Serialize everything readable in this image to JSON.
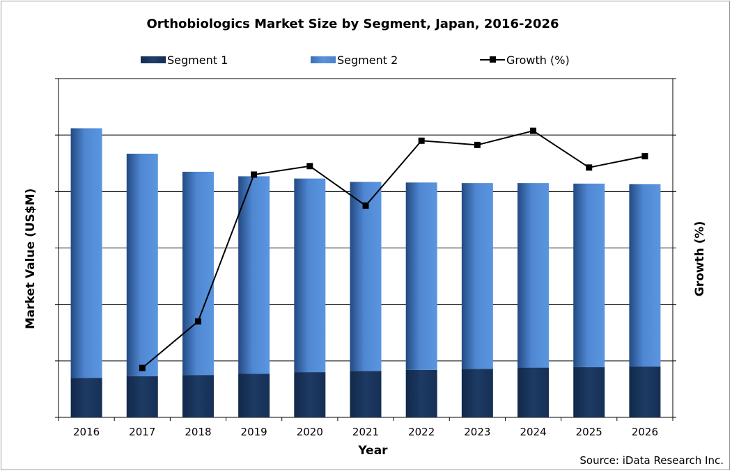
{
  "chart_data": {
    "type": "bar",
    "stacked": true,
    "title": "Orthobiologics Market Size by Segment, Japan, 2016-2026",
    "xlabel": "Year",
    "ylabel": "Market Value (US$M)",
    "y2label": "Growth (%)",
    "categories": [
      "2016",
      "2017",
      "2018",
      "2019",
      "2020",
      "2021",
      "2022",
      "2023",
      "2024",
      "2025",
      "2026"
    ],
    "series": [
      {
        "name": "Segment 1",
        "kind": "bar",
        "color": "#1b355c",
        "values": [
          0.7,
          0.73,
          0.75,
          0.77,
          0.8,
          0.82,
          0.84,
          0.86,
          0.88,
          0.89,
          0.9
        ]
      },
      {
        "name": "Segment 2",
        "kind": "bar",
        "color": "#4a80c8",
        "values": [
          4.42,
          3.94,
          3.6,
          3.5,
          3.43,
          3.35,
          3.32,
          3.29,
          3.27,
          3.25,
          3.23
        ]
      },
      {
        "name": "Growth (%)",
        "kind": "line",
        "axis": "right",
        "color": "#000000",
        "values": [
          null,
          -5.5,
          -2.2,
          8.2,
          8.8,
          6.0,
          10.6,
          10.3,
          11.3,
          8.7,
          9.5
        ]
      }
    ],
    "ylim": [
      0,
      6
    ],
    "y2lim": [
      -9,
      15
    ],
    "legend": "top",
    "grid": true
  },
  "source": "Source: iData Research Inc."
}
